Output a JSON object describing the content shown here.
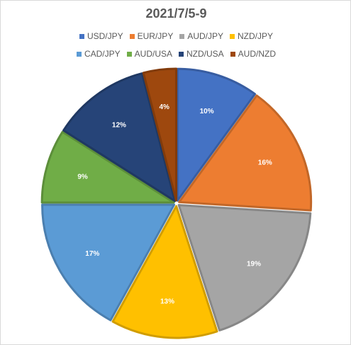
{
  "chart_data": {
    "type": "pie",
    "title": "2021/7/5-9",
    "legend_position": "top",
    "slices": [
      {
        "label": "USD/JPY",
        "value": 10,
        "display": "10%",
        "color": "#4472C4"
      },
      {
        "label": "EUR/JPY",
        "value": 16,
        "display": "16%",
        "color": "#ED7D31"
      },
      {
        "label": "AUD/JPY",
        "value": 19,
        "display": "19%",
        "color": "#A5A5A5"
      },
      {
        "label": "NZD/JPY",
        "value": 13,
        "display": "13%",
        "color": "#FFC000"
      },
      {
        "label": "CAD/JPY",
        "value": 17,
        "display": "17%",
        "color": "#5B9BD5"
      },
      {
        "label": "AUD/USA",
        "value": 9,
        "display": "9%",
        "color": "#70AD47"
      },
      {
        "label": "NZD/USA",
        "value": 12,
        "display": "12%",
        "color": "#264478"
      },
      {
        "label": "AUD/NZD",
        "value": 4,
        "display": "4%",
        "color": "#9E480E"
      }
    ]
  }
}
